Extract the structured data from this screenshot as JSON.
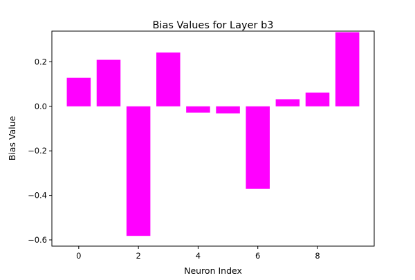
{
  "chart_data": {
    "type": "bar",
    "title": "Bias Values for Layer b3",
    "xlabel": "Neuron Index",
    "ylabel": "Bias Value",
    "categories": [
      0,
      1,
      2,
      3,
      4,
      5,
      6,
      7,
      8,
      9
    ],
    "values": [
      0.128,
      0.209,
      -0.582,
      0.242,
      -0.028,
      -0.032,
      -0.37,
      0.032,
      0.062,
      0.333
    ],
    "xlim": [
      -0.9,
      9.9
    ],
    "ylim": [
      -0.628,
      0.338
    ],
    "xticks": [
      0,
      2,
      4,
      6,
      8
    ],
    "xtick_labels": [
      "0",
      "2",
      "4",
      "6",
      "8"
    ],
    "yticks": [
      -0.6,
      -0.4,
      -0.2,
      0.0,
      0.2
    ],
    "ytick_labels": [
      "−0.6",
      "−0.4",
      "−0.2",
      "0.0",
      "0.2"
    ],
    "bar_color": "#ff00ff",
    "grid": false,
    "legend": "none"
  }
}
